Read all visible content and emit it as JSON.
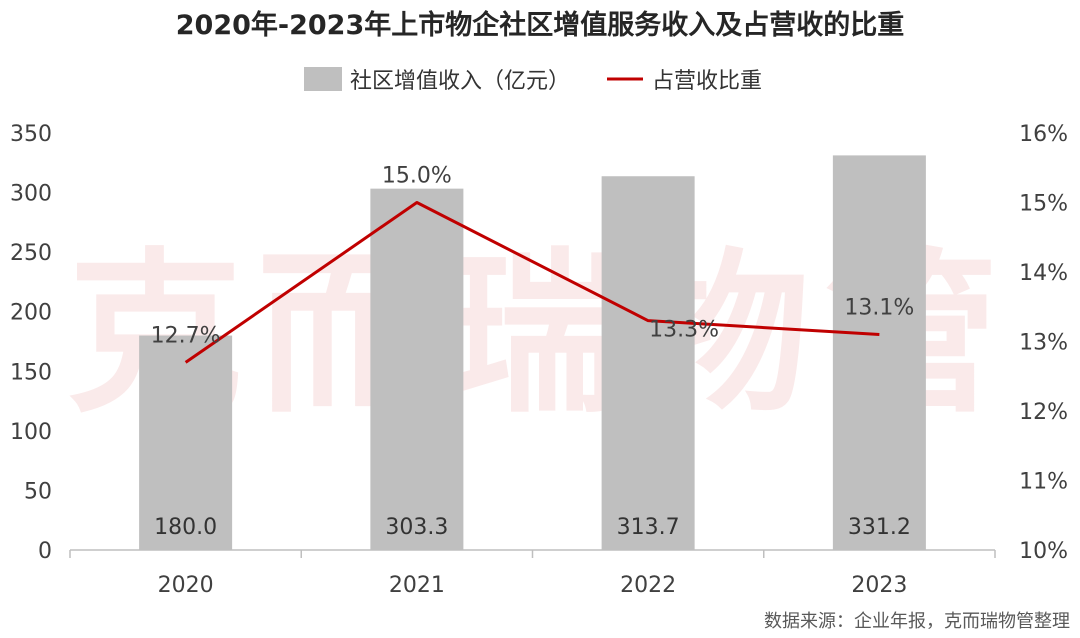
{
  "chart_data": {
    "type": "bar",
    "title": "2020年-2023年上市物企社区增值服务收入及占营收的比重",
    "categories": [
      "2020",
      "2021",
      "2022",
      "2023"
    ],
    "series": [
      {
        "name": "社区增值收入（亿元）",
        "type": "bar",
        "axis": "left",
        "values": [
          180.0,
          303.3,
          313.7,
          331.2
        ],
        "labels": [
          "180.0",
          "303.3",
          "313.7",
          "331.2"
        ],
        "color": "#bfbfbf"
      },
      {
        "name": "占营收比重",
        "type": "line",
        "axis": "right",
        "values": [
          12.7,
          15.0,
          13.3,
          13.1
        ],
        "labels": [
          "12.7%",
          "15.0%",
          "13.3%",
          "13.1%"
        ],
        "color": "#c00000"
      }
    ],
    "left_axis": {
      "min": 0,
      "max": 350,
      "step": 50,
      "ticks": [
        "0",
        "50",
        "100",
        "150",
        "200",
        "250",
        "300",
        "350"
      ]
    },
    "right_axis": {
      "min": 10,
      "max": 16,
      "step": 1,
      "ticks": [
        "10%",
        "11%",
        "12%",
        "13%",
        "14%",
        "15%",
        "16%"
      ]
    },
    "legend_position": "top",
    "grid": false
  },
  "watermark": "克而瑞物管",
  "source": "数据来源：企业年报，克而瑞物管整理"
}
